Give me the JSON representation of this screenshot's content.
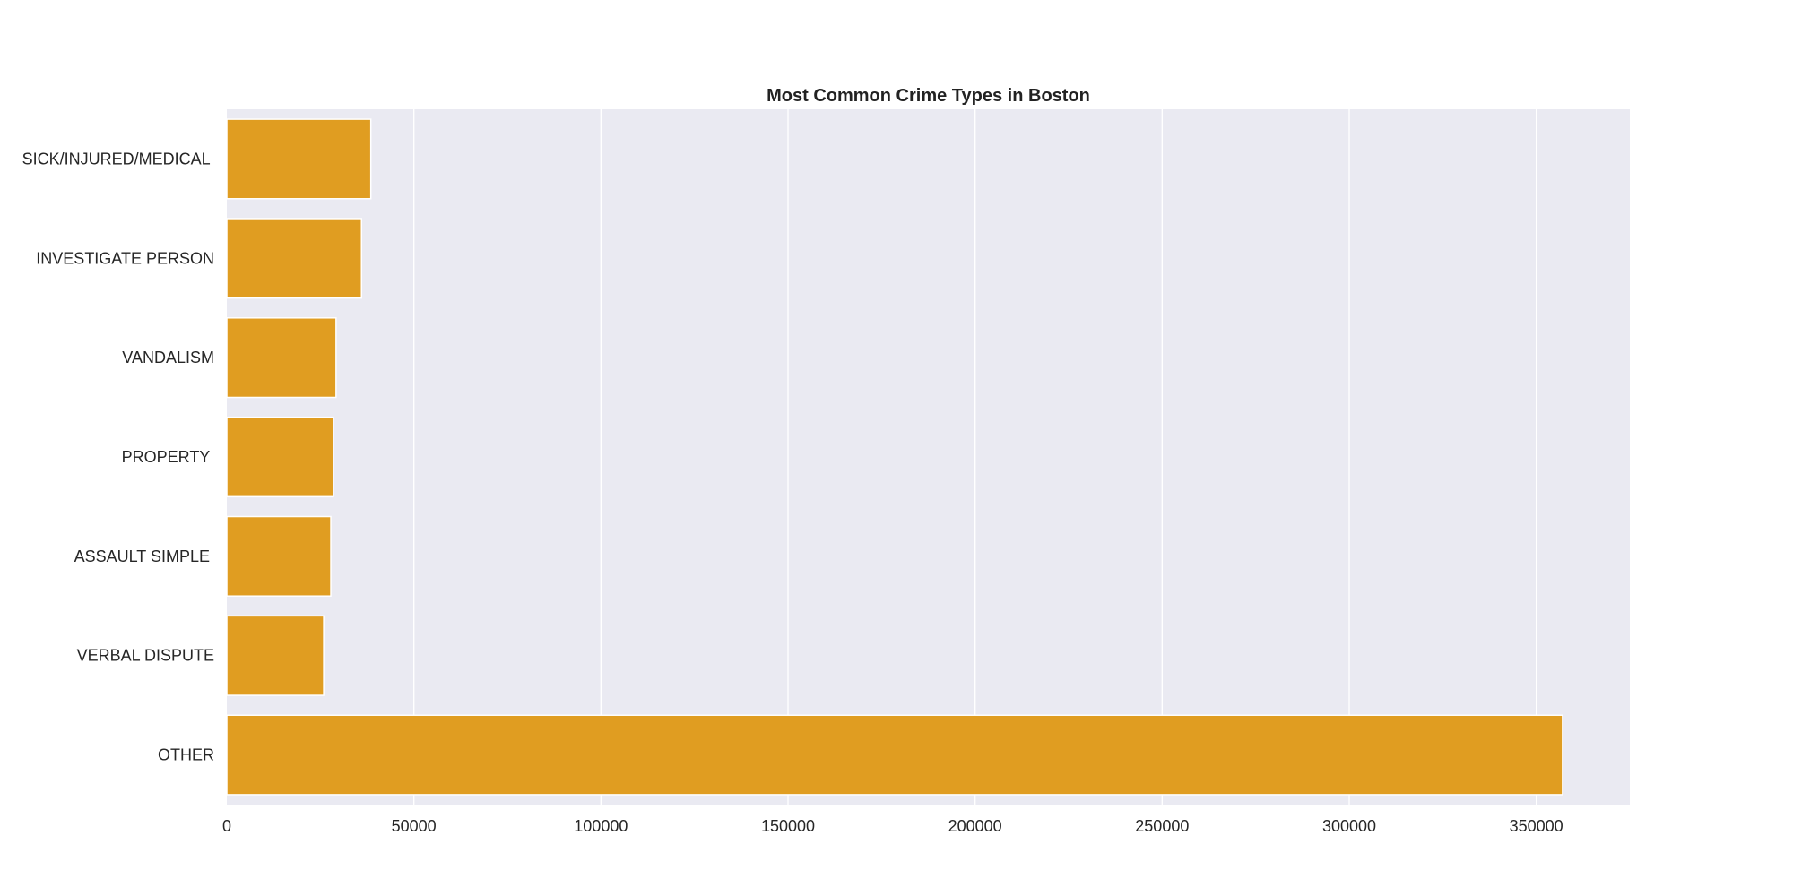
{
  "chart_data": {
    "type": "bar",
    "orientation": "horizontal",
    "title": "Most Common Crime Types in Boston",
    "xlabel": "",
    "ylabel": "",
    "categories": [
      "SICK/INJURED/MEDICAL ",
      "INVESTIGATE PERSON",
      "VANDALISM",
      "PROPERTY ",
      "ASSAULT SIMPLE ",
      "VERBAL DISPUTE",
      "OTHER"
    ],
    "values": [
      38500,
      36000,
      29200,
      28500,
      27800,
      25900,
      357000
    ],
    "xlim": [
      0,
      375000
    ],
    "x_ticks": [
      0,
      50000,
      100000,
      150000,
      200000,
      250000,
      300000,
      350000
    ],
    "x_tick_labels": [
      "0",
      "50000",
      "100000",
      "150000",
      "200000",
      "250000",
      "300000",
      "350000"
    ],
    "grid": true,
    "legend": "none"
  },
  "colors": {
    "bar": "#e09d21",
    "plot_background": "#eaeaf2",
    "grid": "#ffffff",
    "text": "#262626"
  }
}
